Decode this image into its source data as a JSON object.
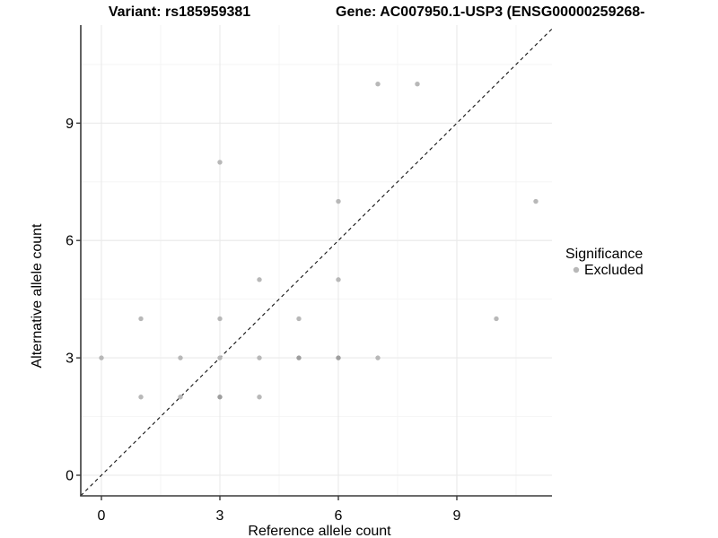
{
  "titles": {
    "variant": "Variant: rs185959381",
    "gene": "Gene: AC007950.1-USP3 (ENSG00000259268-"
  },
  "chart_data": {
    "type": "scatter",
    "xlabel": "Reference allele count",
    "ylabel": "Alternative allele count",
    "xlim": [
      -0.52,
      11.41
    ],
    "ylim": [
      -0.53,
      11.51
    ],
    "x_ticks": [
      0,
      3,
      6,
      9
    ],
    "y_ticks": [
      0,
      3,
      6,
      9
    ],
    "x_minor_ticks": [
      1.5,
      4.5,
      7.5,
      10.5
    ],
    "y_minor_ticks": [
      1.5,
      4.5,
      7.5,
      10.5
    ],
    "grid": true,
    "identity_line": {
      "style": "dashed",
      "slope": 1,
      "intercept": 0
    },
    "series": [
      {
        "name": "Excluded",
        "points": [
          [
            0,
            3
          ],
          [
            1,
            2
          ],
          [
            1,
            4
          ],
          [
            2,
            2
          ],
          [
            2,
            3
          ],
          [
            3,
            2
          ],
          [
            3,
            3
          ],
          [
            3,
            4
          ],
          [
            3,
            8
          ],
          [
            4,
            2
          ],
          [
            4,
            3
          ],
          [
            4,
            5
          ],
          [
            5,
            3
          ],
          [
            5,
            4
          ],
          [
            6,
            3
          ],
          [
            6,
            5
          ],
          [
            6,
            7
          ],
          [
            7,
            3
          ],
          [
            7,
            10
          ],
          [
            8,
            10
          ],
          [
            10,
            4
          ],
          [
            11,
            7
          ]
        ]
      }
    ],
    "overplotted_points": [
      [
        3,
        2
      ],
      [
        5,
        3
      ],
      [
        6,
        3
      ]
    ],
    "legend": {
      "title": "Significance",
      "position": "right",
      "items": [
        {
          "label": "Excluded",
          "color": "#b8b8b8"
        }
      ]
    }
  },
  "colors": {
    "point": "#b8b8b8",
    "point_dark": "#9e9e9e",
    "grid_major": "#e9e9e9",
    "grid_minor": "#f4f4f4",
    "axis": "#3a3a3a",
    "identity_line": "#111111",
    "text": "#000000"
  }
}
